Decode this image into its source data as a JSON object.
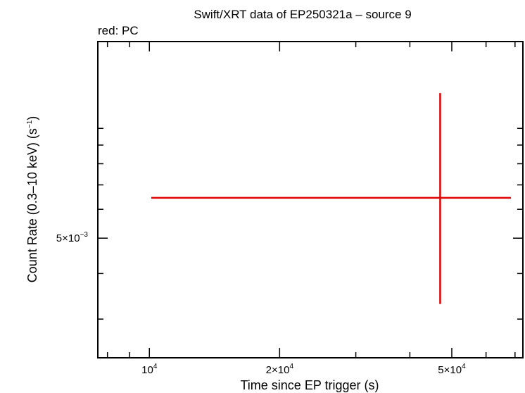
{
  "chart_data": {
    "type": "scatter",
    "title": "Swift/XRT data of EP250321a – source 9",
    "subtitle": "red: PC",
    "xlabel": "Time since EP trigger (s)",
    "ylabel": "Count Rate (0.3–10 keV) (s",
    "ylabel_exp": "−1",
    "ylabel_tail": ")",
    "x_scale": "log",
    "y_scale": "log",
    "xlim": [
      7600,
      73000
    ],
    "ylim": [
      0.00235,
      0.0173
    ],
    "grid": false,
    "x_ticks": [
      {
        "value": 10000,
        "mantissa": "10",
        "exp": "4"
      },
      {
        "value": 20000,
        "mantissa": "2×10",
        "exp": "4"
      },
      {
        "value": 50000,
        "mantissa": "5×10",
        "exp": "4"
      }
    ],
    "y_ticks": [
      {
        "value": 0.005,
        "mantissa": "5×10",
        "exp": "−3"
      }
    ],
    "series": [
      {
        "color": "#e00000",
        "points": [
          {
            "x": 47000,
            "x_lo": 10100,
            "x_hi": 68500,
            "y": 0.00645,
            "y_lo": 0.0033,
            "y_hi": 0.0125
          }
        ]
      }
    ]
  }
}
